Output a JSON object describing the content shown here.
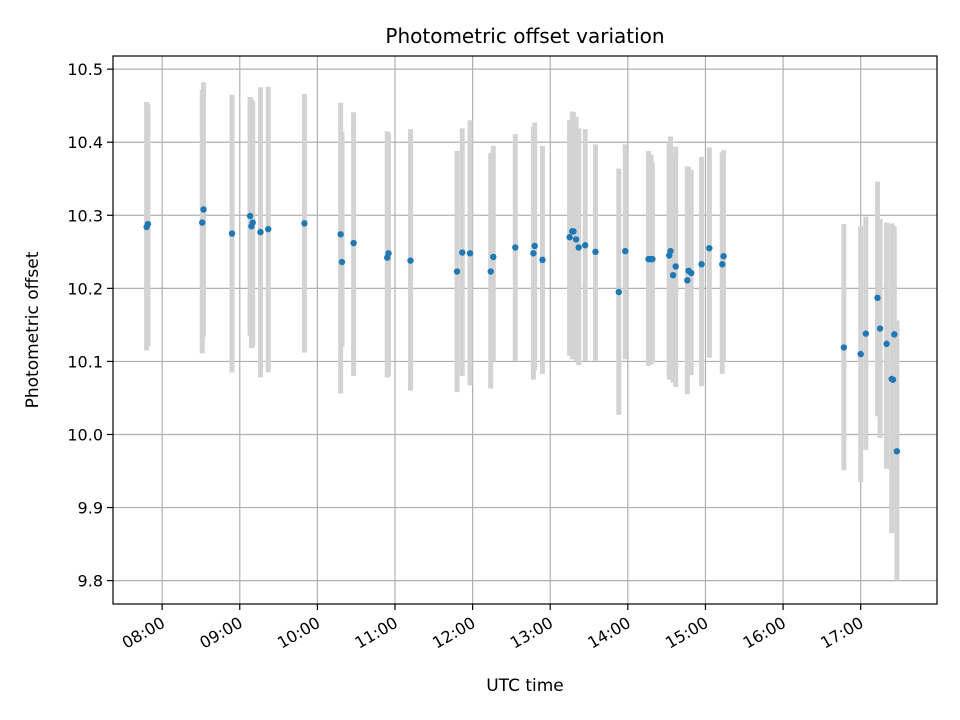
{
  "chart_data": {
    "type": "scatter",
    "title": "Photometric offset variation",
    "xlabel": "UTC time",
    "ylabel": "Photometric offset",
    "grid": true,
    "x_ticks": [
      "08:00",
      "09:00",
      "10:00",
      "11:00",
      "12:00",
      "13:00",
      "14:00",
      "15:00",
      "16:00",
      "17:00"
    ],
    "y_ticks": [
      "9.8",
      "9.9",
      "10.0",
      "10.1",
      "10.2",
      "10.3",
      "10.4",
      "10.5"
    ],
    "xlim": [
      "07:22",
      "17:59"
    ],
    "ylim": [
      9.768,
      10.518
    ],
    "colors": {
      "marker": "#1f77b4",
      "errorbar": "#d3d3d3",
      "grid": "#b0b0b0"
    },
    "series": [
      {
        "x": [
          "07:48",
          "07:49",
          "08:31",
          "08:32",
          "08:54",
          "09:08",
          "09:09",
          "09:10",
          "09:16",
          "09:22",
          "09:50",
          "10:18",
          "10:19",
          "10:28",
          "10:54",
          "10:55",
          "11:12",
          "11:48",
          "11:52",
          "11:58",
          "12:14",
          "12:16",
          "12:33",
          "12:47",
          "12:48",
          "12:54",
          "13:15",
          "13:17",
          "13:18",
          "13:20",
          "13:22",
          "13:27",
          "13:35",
          "13:53",
          "13:58",
          "14:16",
          "14:18",
          "14:19",
          "14:32",
          "14:33",
          "14:35",
          "14:37",
          "14:46",
          "14:47",
          "14:49",
          "14:57",
          "15:03",
          "15:13",
          "15:14",
          "16:47",
          "17:00",
          "17:04",
          "17:13",
          "17:15",
          "17:20",
          "17:24",
          "17:25",
          "17:26",
          "17:28"
        ],
        "y": [
          10.284,
          10.288,
          10.29,
          10.308,
          10.275,
          10.299,
          10.285,
          10.29,
          10.277,
          10.281,
          10.289,
          10.274,
          10.236,
          10.262,
          10.242,
          10.248,
          10.238,
          10.223,
          10.249,
          10.248,
          10.223,
          10.243,
          10.256,
          10.248,
          10.258,
          10.239,
          10.27,
          10.278,
          10.278,
          10.267,
          10.256,
          10.259,
          10.25,
          10.195,
          10.251,
          10.24,
          10.24,
          10.24,
          10.245,
          10.251,
          10.218,
          10.23,
          10.211,
          10.224,
          10.221,
          10.233,
          10.255,
          10.233,
          10.244,
          10.119,
          10.11,
          10.138,
          10.187,
          10.145,
          10.124,
          10.076,
          10.075,
          10.137,
          9.977
        ],
        "yerr_low": [
          10.115,
          10.12,
          10.111,
          10.134,
          10.085,
          10.135,
          10.118,
          10.12,
          10.078,
          10.085,
          10.112,
          10.056,
          10.12,
          10.08,
          10.078,
          10.08,
          10.06,
          10.058,
          10.08,
          10.067,
          10.063,
          10.1,
          10.101,
          10.075,
          10.088,
          10.083,
          10.108,
          10.103,
          10.108,
          10.1,
          10.095,
          10.101,
          10.101,
          10.027,
          10.103,
          10.094,
          10.096,
          10.099,
          10.075,
          10.084,
          10.071,
          10.065,
          10.055,
          10.082,
          10.081,
          10.066,
          10.105,
          10.083,
          10.1,
          9.951,
          9.935,
          9.979,
          10.025,
          9.995,
          9.953,
          9.865,
          9.9,
          9.915,
          9.8
        ],
        "yerr_high": [
          10.455,
          10.452,
          10.472,
          10.482,
          10.465,
          10.462,
          10.459,
          10.456,
          10.475,
          10.476,
          10.466,
          10.454,
          10.414,
          10.441,
          10.415,
          10.413,
          10.418,
          10.388,
          10.419,
          10.43,
          10.385,
          10.395,
          10.411,
          10.421,
          10.427,
          10.395,
          10.43,
          10.442,
          10.441,
          10.435,
          10.419,
          10.418,
          10.397,
          10.364,
          10.397,
          10.388,
          10.383,
          10.372,
          10.399,
          10.408,
          10.38,
          10.394,
          10.367,
          10.366,
          10.362,
          10.38,
          10.393,
          10.386,
          10.389,
          10.288,
          10.285,
          10.298,
          10.346,
          10.295,
          10.29,
          10.289,
          10.286,
          10.285,
          10.156
        ]
      }
    ]
  }
}
